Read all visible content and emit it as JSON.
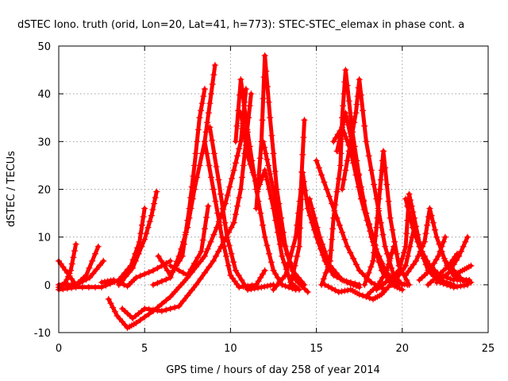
{
  "chart_data": {
    "type": "scatter",
    "title": "dSTEC Iono. truth (orid, Lon=20, Lat=41, h=773): STEC-STEC_elemax in phase cont. a",
    "xlabel": "GPS time / hours of day 258 of year 2014",
    "ylabel": "dSTEC  / TECUs",
    "xlim": [
      0,
      25
    ],
    "ylim": [
      -10,
      50
    ],
    "xticks": [
      0,
      5,
      10,
      15,
      20,
      25
    ],
    "yticks": [
      -10,
      0,
      10,
      20,
      30,
      40,
      50
    ],
    "grid": true,
    "marker": "+",
    "color": "#ff0000",
    "series": [
      {
        "points": [
          [
            0.0,
            -0.5
          ],
          [
            0.4,
            0.5
          ],
          [
            0.7,
            3.0
          ],
          [
            1.0,
            8.5
          ]
        ]
      },
      {
        "points": [
          [
            0.0,
            5.0
          ],
          [
            0.5,
            2.5
          ],
          [
            1.0,
            0.0
          ],
          [
            1.6,
            2.0
          ],
          [
            2.3,
            8.0
          ]
        ]
      },
      {
        "points": [
          [
            0.0,
            0.0
          ],
          [
            1.0,
            0.0
          ],
          [
            1.8,
            1.5
          ],
          [
            2.6,
            5.0
          ]
        ]
      },
      {
        "points": [
          [
            0.0,
            -1.0
          ],
          [
            1.0,
            -0.5
          ],
          [
            2.5,
            -0.5
          ],
          [
            3.5,
            1.0
          ],
          [
            4.2,
            4.0
          ],
          [
            4.7,
            9.0
          ],
          [
            5.0,
            16.0
          ]
        ]
      },
      {
        "points": [
          [
            3.5,
            0.0
          ],
          [
            4.3,
            3.5
          ],
          [
            5.0,
            9.5
          ],
          [
            5.4,
            14.5
          ],
          [
            5.7,
            19.5
          ]
        ]
      },
      {
        "points": [
          [
            2.5,
            0.5
          ],
          [
            3.2,
            1.0
          ],
          [
            4.0,
            -0.3
          ],
          [
            4.5,
            1.5
          ],
          [
            5.5,
            3.0
          ],
          [
            6.5,
            5.0
          ]
        ]
      },
      {
        "points": [
          [
            2.9,
            -3.0
          ],
          [
            3.4,
            -6.5
          ],
          [
            4.0,
            -9.0
          ],
          [
            4.5,
            -8.0
          ],
          [
            5.5,
            -5.5
          ],
          [
            6.5,
            -2.5
          ],
          [
            7.5,
            1.5
          ],
          [
            8.5,
            6.0
          ],
          [
            9.2,
            12.0
          ],
          [
            9.7,
            17.0
          ],
          [
            10.2,
            24.0
          ],
          [
            10.6,
            30.0
          ],
          [
            10.9,
            41.0
          ]
        ]
      },
      {
        "points": [
          [
            3.7,
            -5.0
          ],
          [
            4.3,
            -7.0
          ],
          [
            5.0,
            -5.0
          ],
          [
            6.0,
            -5.5
          ],
          [
            7.0,
            -4.5
          ],
          [
            8.0,
            0.0
          ],
          [
            9.0,
            5.0
          ],
          [
            9.6,
            9.0
          ],
          [
            10.2,
            13.0
          ],
          [
            10.6,
            20.0
          ],
          [
            10.9,
            30.0
          ],
          [
            11.2,
            40.0
          ]
        ]
      },
      {
        "points": [
          [
            5.5,
            0.0
          ],
          [
            6.5,
            1.5
          ],
          [
            7.0,
            6.0
          ],
          [
            7.5,
            12.0
          ],
          [
            7.9,
            20.0
          ],
          [
            8.5,
            30.0
          ],
          [
            8.8,
            38.0
          ],
          [
            9.1,
            46.0
          ]
        ]
      },
      {
        "points": [
          [
            5.8,
            6.0
          ],
          [
            6.5,
            2.0
          ],
          [
            7.2,
            6.0
          ],
          [
            7.6,
            16.0
          ],
          [
            7.9,
            25.0
          ],
          [
            8.2,
            35.0
          ],
          [
            8.5,
            41.0
          ]
        ]
      },
      {
        "points": [
          [
            6.5,
            4.0
          ],
          [
            7.5,
            2.0
          ],
          [
            8.3,
            7.0
          ],
          [
            8.7,
            16.5
          ]
        ]
      },
      {
        "points": [
          [
            8.5,
            30.0
          ],
          [
            9.0,
            20.0
          ],
          [
            9.5,
            10.0
          ],
          [
            10.0,
            2.0
          ],
          [
            10.5,
            -0.5
          ],
          [
            11.5,
            0.0
          ],
          [
            12.0,
            3.0
          ]
        ]
      },
      {
        "points": [
          [
            8.8,
            33.0
          ],
          [
            9.3,
            22.0
          ],
          [
            9.8,
            10.0
          ],
          [
            10.3,
            3.0
          ],
          [
            11.0,
            -1.0
          ],
          [
            11.8,
            -0.5
          ],
          [
            12.5,
            0.0
          ]
        ]
      },
      {
        "points": [
          [
            10.3,
            30.0
          ],
          [
            10.6,
            43.0
          ],
          [
            11.0,
            32.0
          ],
          [
            11.5,
            20.0
          ],
          [
            12.0,
            10.0
          ],
          [
            12.5,
            3.0
          ],
          [
            13.0,
            0.0
          ],
          [
            13.8,
            -1.0
          ]
        ]
      },
      {
        "points": [
          [
            10.6,
            36.0
          ],
          [
            11.0,
            27.0
          ],
          [
            11.6,
            20.0
          ],
          [
            12.0,
            24.0
          ],
          [
            12.5,
            16.0
          ],
          [
            13.0,
            6.0
          ],
          [
            13.5,
            0.5
          ],
          [
            14.0,
            -1.0
          ]
        ]
      },
      {
        "points": [
          [
            11.5,
            16.0
          ],
          [
            11.8,
            30.0
          ],
          [
            12.0,
            48.0
          ],
          [
            12.3,
            35.0
          ],
          [
            12.7,
            20.0
          ],
          [
            13.2,
            8.0
          ],
          [
            13.8,
            1.0
          ],
          [
            14.5,
            -1.5
          ]
        ]
      },
      {
        "points": [
          [
            11.9,
            30.0
          ],
          [
            12.2,
            25.0
          ],
          [
            12.6,
            18.0
          ],
          [
            13.0,
            10.0
          ],
          [
            13.6,
            3.0
          ],
          [
            14.3,
            0.0
          ]
        ]
      },
      {
        "points": [
          [
            12.5,
            -1.0
          ],
          [
            13.2,
            2.0
          ],
          [
            13.8,
            10.0
          ],
          [
            14.1,
            20.0
          ],
          [
            14.3,
            34.5
          ]
        ]
      },
      {
        "points": [
          [
            13.5,
            0.0
          ],
          [
            14.0,
            8.0
          ],
          [
            14.2,
            23.5
          ],
          [
            14.5,
            16.0
          ],
          [
            15.0,
            10.0
          ],
          [
            15.5,
            5.0
          ],
          [
            16.0,
            2.0
          ],
          [
            16.8,
            0.5
          ],
          [
            17.5,
            -0.5
          ]
        ]
      },
      {
        "points": [
          [
            14.6,
            18.0
          ],
          [
            15.2,
            10.0
          ],
          [
            15.8,
            4.0
          ],
          [
            16.5,
            1.0
          ],
          [
            17.5,
            0.0
          ]
        ]
      },
      {
        "points": [
          [
            15.3,
            0.0
          ],
          [
            15.8,
            5.0
          ],
          [
            16.0,
            14.0
          ],
          [
            16.4,
            25.0
          ],
          [
            16.5,
            35.0
          ],
          [
            16.7,
            45.0
          ],
          [
            17.1,
            32.0
          ],
          [
            17.6,
            20.0
          ],
          [
            18.2,
            10.0
          ],
          [
            18.8,
            3.0
          ],
          [
            19.4,
            0.0
          ],
          [
            20.0,
            -1.0
          ]
        ]
      },
      {
        "points": [
          [
            15.0,
            26.0
          ],
          [
            15.6,
            20.0
          ],
          [
            16.2,
            14.0
          ],
          [
            16.8,
            8.0
          ],
          [
            17.5,
            3.0
          ],
          [
            18.2,
            0.5
          ],
          [
            19.0,
            -1.0
          ]
        ]
      },
      {
        "points": [
          [
            16.0,
            30.0
          ],
          [
            16.5,
            33.0
          ],
          [
            17.0,
            28.0
          ],
          [
            17.6,
            18.0
          ],
          [
            18.3,
            9.0
          ],
          [
            19.0,
            3.0
          ],
          [
            19.6,
            0.5
          ],
          [
            20.3,
            0.0
          ]
        ]
      },
      {
        "points": [
          [
            16.2,
            28.0
          ],
          [
            16.7,
            36.0
          ],
          [
            17.3,
            26.0
          ],
          [
            17.9,
            15.0
          ],
          [
            18.6,
            6.0
          ],
          [
            19.2,
            1.5
          ],
          [
            19.8,
            0.0
          ]
        ]
      },
      {
        "points": [
          [
            15.5,
            0.0
          ],
          [
            16.3,
            -1.5
          ],
          [
            17.0,
            -1.0
          ],
          [
            17.5,
            -2.0
          ],
          [
            18.3,
            -3.0
          ],
          [
            18.8,
            -2.0
          ],
          [
            19.3,
            0.0
          ]
        ]
      },
      {
        "points": [
          [
            16.5,
            20.0
          ],
          [
            16.9,
            28.0
          ],
          [
            17.3,
            36.0
          ],
          [
            17.5,
            43.0
          ],
          [
            17.9,
            30.0
          ],
          [
            18.5,
            18.0
          ],
          [
            19.0,
            8.0
          ],
          [
            19.5,
            2.0
          ],
          [
            20.0,
            0.0
          ]
        ]
      },
      {
        "points": [
          [
            17.8,
            0.0
          ],
          [
            18.3,
            5.0
          ],
          [
            18.5,
            12.0
          ],
          [
            18.7,
            20.0
          ],
          [
            18.9,
            28.0
          ],
          [
            19.3,
            14.0
          ],
          [
            19.8,
            4.0
          ],
          [
            20.4,
            0.0
          ]
        ]
      },
      {
        "points": [
          [
            18.0,
            -2.0
          ],
          [
            18.6,
            0.0
          ],
          [
            19.1,
            3.0
          ],
          [
            19.5,
            8.0
          ]
        ]
      },
      {
        "points": [
          [
            18.5,
            -1.0
          ],
          [
            19.2,
            1.0
          ],
          [
            19.8,
            3.0
          ],
          [
            20.2,
            8.0
          ],
          [
            20.4,
            19.0
          ],
          [
            20.7,
            14.0
          ],
          [
            21.1,
            7.0
          ],
          [
            21.6,
            3.0
          ],
          [
            22.2,
            1.0
          ],
          [
            23.0,
            0.0
          ]
        ]
      },
      {
        "points": [
          [
            20.2,
            18.0
          ],
          [
            20.6,
            12.0
          ],
          [
            21.0,
            8.0
          ],
          [
            21.6,
            4.0
          ],
          [
            22.2,
            2.0
          ],
          [
            23.0,
            1.0
          ]
        ]
      },
      {
        "points": [
          [
            19.5,
            0.5
          ],
          [
            20.2,
            4.0
          ],
          [
            20.7,
            12.0
          ],
          [
            21.0,
            8.0
          ],
          [
            21.5,
            3.0
          ],
          [
            22.2,
            0.5
          ],
          [
            23.0,
            -0.5
          ],
          [
            23.8,
            0.0
          ]
        ]
      },
      {
        "points": [
          [
            20.2,
            2.0
          ],
          [
            20.8,
            5.0
          ],
          [
            21.3,
            9.0
          ],
          [
            21.6,
            16.0
          ],
          [
            22.0,
            10.0
          ],
          [
            22.6,
            4.0
          ],
          [
            23.2,
            1.0
          ],
          [
            23.9,
            1.0
          ]
        ]
      },
      {
        "points": [
          [
            21.0,
            1.0
          ],
          [
            21.6,
            3.0
          ],
          [
            22.1,
            6.0
          ],
          [
            22.5,
            10.0
          ]
        ]
      },
      {
        "points": [
          [
            21.5,
            0.0
          ],
          [
            22.1,
            2.0
          ],
          [
            22.7,
            4.0
          ],
          [
            23.2,
            6.5
          ]
        ]
      },
      {
        "points": [
          [
            22.0,
            0.5
          ],
          [
            22.7,
            2.5
          ],
          [
            23.3,
            6.0
          ],
          [
            23.8,
            10.0
          ]
        ]
      },
      {
        "points": [
          [
            22.5,
            5.0
          ],
          [
            23.0,
            3.0
          ],
          [
            23.5,
            1.0
          ],
          [
            24.0,
            0.5
          ]
        ]
      },
      {
        "points": [
          [
            23.0,
            2.0
          ],
          [
            23.5,
            3.0
          ],
          [
            24.0,
            4.0
          ]
        ]
      }
    ]
  }
}
